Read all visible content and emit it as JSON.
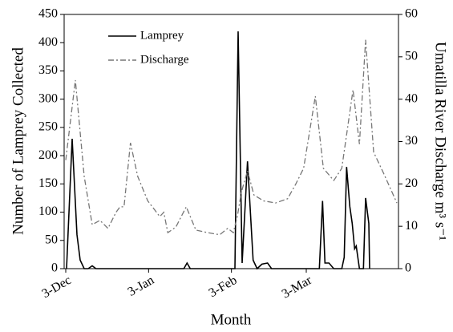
{
  "chart_data": {
    "type": "line",
    "xlabel": "Month",
    "ylabel": "Number of Lamprey Collected",
    "y2label": "Umatilla River Discharge m³ s⁻¹",
    "xlim": [
      -0.6,
      124.5
    ],
    "xticks": [
      {
        "value": 0,
        "label": "3-Dec"
      },
      {
        "value": 31,
        "label": "3-Jan"
      },
      {
        "value": 62,
        "label": "3-Feb"
      },
      {
        "value": 90,
        "label": "3-Mar"
      }
    ],
    "ylim": [
      0,
      450
    ],
    "yticks": [
      0,
      50,
      100,
      150,
      200,
      250,
      300,
      350,
      400,
      450
    ],
    "y2lim": [
      0,
      60
    ],
    "y2ticks": [
      0,
      10,
      20,
      30,
      40,
      50,
      60
    ],
    "legend": "upper left",
    "series": [
      {
        "name": "Lamprey",
        "color": "#000000",
        "dash": "solid",
        "x": [
          0.3,
          2.4,
          4.2,
          5.4,
          6.9,
          8.4,
          9.9,
          11.3,
          44.2,
          45.4,
          46.6,
          63.3,
          64.5,
          66,
          68,
          70.1,
          71.6,
          73.4,
          75.5,
          77,
          94.9,
          96.1,
          97,
          98.5,
          100.3,
          103.3,
          104.2,
          105.1,
          106.3,
          107.2,
          108.1,
          108.7,
          109.9,
          111.4,
          112.2,
          113.4,
          113.7
        ],
        "values": [
          0,
          230,
          60,
          15,
          0,
          0,
          5,
          0,
          0,
          10,
          0,
          0,
          420,
          10,
          190,
          15,
          0,
          8,
          10,
          0,
          0,
          120,
          10,
          10,
          0,
          0,
          20,
          180,
          110,
          80,
          35,
          40,
          0,
          0,
          125,
          80,
          0
        ]
      },
      {
        "name": "Discharge",
        "color": "#777777",
        "dash": "dashdot",
        "axis": "y2",
        "x": [
          0,
          3.6,
          6.9,
          9.9,
          12.8,
          15.8,
          18.8,
          20.3,
          21.8,
          24.2,
          26.9,
          30.7,
          35.2,
          36.7,
          38.2,
          41.2,
          45.1,
          48.7,
          53.1,
          57.6,
          60.6,
          62.7,
          64.2,
          65.7,
          68,
          70.4,
          74,
          78.5,
          83,
          86,
          89,
          93.4,
          96.4,
          100.3,
          103.3,
          107.5,
          109.9,
          112.2,
          115.2,
          118.8,
          123.9
        ],
        "values": [
          25.6,
          44.5,
          21.8,
          10.4,
          11.4,
          9.5,
          13.3,
          14.6,
          14.6,
          29.7,
          21.8,
          16,
          12.3,
          13.3,
          8.5,
          9.8,
          14.6,
          9.1,
          8.5,
          8,
          9.5,
          8.5,
          12.3,
          18,
          23.1,
          17.4,
          16,
          15.5,
          16.5,
          19.9,
          23.7,
          40.7,
          23.7,
          20.8,
          23.7,
          42.2,
          29.4,
          54,
          27.5,
          22.7,
          15.5
        ]
      }
    ]
  }
}
